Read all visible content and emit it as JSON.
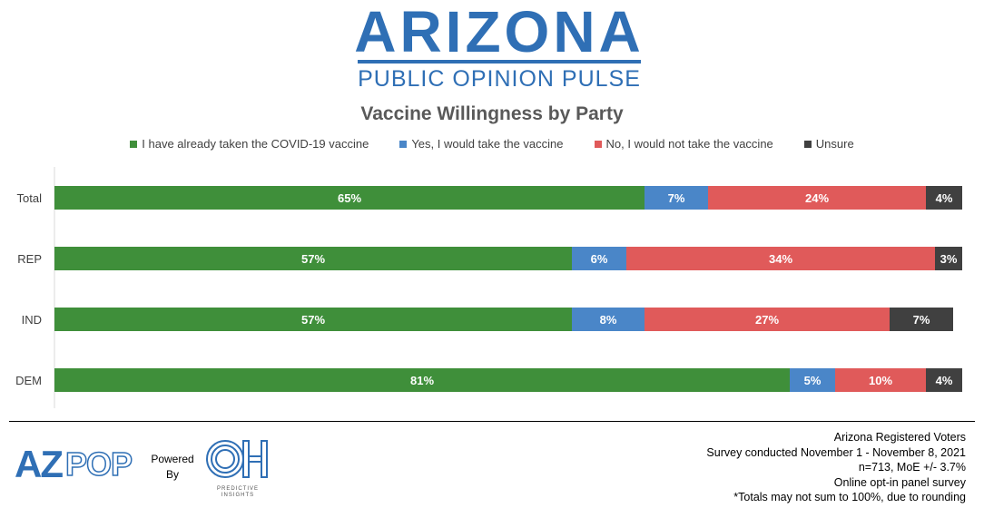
{
  "brand": {
    "title": "ARIZONA",
    "subtitle": "PUBLIC OPINION PULSE"
  },
  "footer": {
    "powered_by": "Powered By",
    "azpop_text": "AZPOP",
    "oh_text": "OH",
    "oh_caption": "PREDICTIVE INSIGHTS",
    "notes": [
      "Arizona Registered Voters",
      "Survey conducted November 1 - November 8, 2021",
      "n=713, MoE +/- 3.7%",
      "Online opt-in panel survey",
      "*Totals may not sum to 100%, due to rounding"
    ]
  },
  "colors": {
    "brand": "#2f6fb5",
    "green": "#3f8f3a",
    "blue": "#4a86c8",
    "red": "#e05a5a",
    "dark": "#404040"
  },
  "chart_data": {
    "type": "bar",
    "orientation": "horizontal",
    "stacked": true,
    "title": "Vaccine Willingness by Party",
    "categories": [
      "Total",
      "REP",
      "IND",
      "DEM"
    ],
    "series": [
      {
        "name": "I have already taken the COVID-19 vaccine",
        "color": "#3f8f3a",
        "values": [
          65,
          57,
          57,
          81
        ]
      },
      {
        "name": "Yes, I would take the vaccine",
        "color": "#4a86c8",
        "values": [
          7,
          6,
          8,
          5
        ]
      },
      {
        "name": "No, I would not take the vaccine",
        "color": "#e05a5a",
        "values": [
          24,
          34,
          27,
          10
        ]
      },
      {
        "name": "Unsure",
        "color": "#404040",
        "values": [
          4,
          3,
          7,
          4
        ]
      }
    ],
    "value_suffix": "%",
    "xlim": [
      0,
      100
    ],
    "legend": "top",
    "grid": false
  }
}
